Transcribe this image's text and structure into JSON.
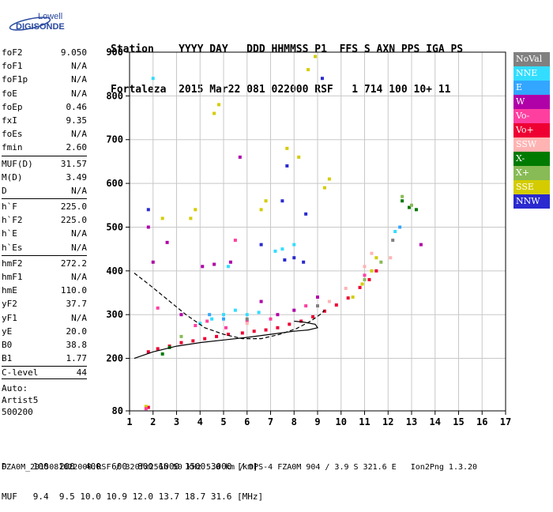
{
  "logo": {
    "top": "Lowell",
    "bottom": "DIGISONDE"
  },
  "header": {
    "row1": "Station    YYYY DAY   DDD HHMMSS P1  FFS S AXN PPS IGA PS",
    "row2": "Fortaleza  2015 Mar22 081 022000 RSF   1 714 100 10+ 11"
  },
  "params": [
    [
      {
        "k": "foF2",
        "v": "9.050"
      },
      {
        "k": "foF1",
        "v": "N/A"
      },
      {
        "k": "foF1p",
        "v": "N/A"
      },
      {
        "k": "foE",
        "v": "N/A"
      },
      {
        "k": "foEp",
        "v": "0.46"
      },
      {
        "k": "fxI",
        "v": "9.35"
      },
      {
        "k": "foEs",
        "v": "N/A"
      },
      {
        "k": "fmin",
        "v": "2.60"
      }
    ],
    [
      {
        "k": "MUF(D)",
        "v": "31.57"
      },
      {
        "k": "M(D)",
        "v": "3.49"
      },
      {
        "k": "D",
        "v": "N/A"
      }
    ],
    [
      {
        "k": "h`F",
        "v": "225.0"
      },
      {
        "k": "h`F2",
        "v": "225.0"
      },
      {
        "k": "h`E",
        "v": "N/A"
      },
      {
        "k": "h`Es",
        "v": "N/A"
      }
    ],
    [
      {
        "k": "hmF2",
        "v": "272.2"
      },
      {
        "k": "hmF1",
        "v": "N/A"
      },
      {
        "k": "hmE",
        "v": "110.0"
      },
      {
        "k": "yF2",
        "v": "37.7"
      },
      {
        "k": "yF1",
        "v": "N/A"
      },
      {
        "k": "yE",
        "v": "20.0"
      },
      {
        "k": "B0",
        "v": "38.8"
      },
      {
        "k": "B1",
        "v": "1.77"
      }
    ]
  ],
  "clevel": {
    "k": "C-level",
    "v": "44"
  },
  "auto": [
    "Auto:",
    "Artist5",
    "500200"
  ],
  "legend": [
    {
      "label": "NoVal",
      "color": "#808080",
      "text": "#ffffff"
    },
    {
      "label": "NNE",
      "color": "#33ddff",
      "text": "#ffffff"
    },
    {
      "label": "E",
      "color": "#33a6ff",
      "text": "#ffffff"
    },
    {
      "label": "W",
      "color": "#b000a8",
      "text": "#ffffff"
    },
    {
      "label": "Vo-",
      "color": "#ff3fa0",
      "text": "#ffffff"
    },
    {
      "label": "Vo+",
      "color": "#ee0033",
      "text": "#ffffff"
    },
    {
      "label": "SSW",
      "color": "#ffb3b3",
      "text": "#ffffff"
    },
    {
      "label": "X-",
      "color": "#007a00",
      "text": "#ffffff"
    },
    {
      "label": "X+",
      "color": "#88bb55",
      "text": "#ffffff"
    },
    {
      "label": "SSE",
      "color": "#d4cc00",
      "text": "#ffffff"
    },
    {
      "label": "NNW",
      "color": "#2a2ad0",
      "text": "#ffffff"
    }
  ],
  "footer": {
    "row1": "D     100  200  400  600  800 1000 1500 3000 [km]",
    "row2": "MUF   9.4  9.5 10.0 10.9 12.0 13.7 18.7 31.6 [MHz]",
    "row3": "FZA0M_2015081022000.RSF / 320fx256h 50 kHz 5.0 km / DPS-4 FZA0M 904 / 3.9 S 321.6 E   Ion2Png 1.3.20"
  },
  "chart_data": {
    "type": "scatter",
    "title": "",
    "xlabel": "",
    "ylabel": "",
    "xlim": [
      1,
      17
    ],
    "ylim": [
      80,
      900
    ],
    "x_ticks": [
      1,
      2,
      3,
      4,
      5,
      6,
      7,
      8,
      9,
      10,
      11,
      12,
      13,
      14,
      15,
      16,
      17
    ],
    "y_ticks": [
      80,
      200,
      300,
      400,
      500,
      600,
      700,
      800,
      900
    ],
    "grid": true,
    "series": [
      {
        "name": "Vo+",
        "color": "#ee0033",
        "points": [
          [
            1.8,
            215
          ],
          [
            2.2,
            222
          ],
          [
            2.7,
            228
          ],
          [
            3.2,
            236
          ],
          [
            3.7,
            240
          ],
          [
            4.2,
            245
          ],
          [
            4.7,
            250
          ],
          [
            5.2,
            255
          ],
          [
            5.8,
            258
          ],
          [
            6.3,
            262
          ],
          [
            6.8,
            265
          ],
          [
            7.3,
            270
          ],
          [
            7.8,
            278
          ],
          [
            8.3,
            285
          ],
          [
            8.8,
            295
          ],
          [
            9.3,
            308
          ],
          [
            9.8,
            322
          ],
          [
            10.3,
            338
          ],
          [
            10.8,
            362
          ],
          [
            11.2,
            380
          ],
          [
            11.5,
            400
          ],
          [
            1.8,
            88
          ]
        ]
      },
      {
        "name": "SSE",
        "color": "#d4cc00",
        "points": [
          [
            10.5,
            340
          ],
          [
            10.9,
            370
          ],
          [
            11.3,
            400
          ],
          [
            11.5,
            430
          ],
          [
            4.6,
            760
          ],
          [
            4.8,
            780
          ],
          [
            8.6,
            860
          ],
          [
            8.9,
            890
          ],
          [
            3.6,
            520
          ],
          [
            3.8,
            540
          ],
          [
            6.6,
            540
          ],
          [
            6.8,
            560
          ],
          [
            7.7,
            680
          ],
          [
            8.2,
            660
          ],
          [
            9.3,
            590
          ],
          [
            9.5,
            610
          ],
          [
            2.4,
            520
          ],
          [
            1.7,
            90
          ]
        ]
      },
      {
        "name": "NNE",
        "color": "#33ddff",
        "points": [
          [
            4.0,
            280
          ],
          [
            4.5,
            290
          ],
          [
            5.0,
            300
          ],
          [
            5.5,
            310
          ],
          [
            6.0,
            300
          ],
          [
            6.5,
            305
          ],
          [
            7.5,
            450
          ],
          [
            8.0,
            460
          ],
          [
            2.0,
            840
          ],
          [
            5.2,
            410
          ],
          [
            7.2,
            445
          ],
          [
            12.3,
            490
          ]
        ]
      },
      {
        "name": "NNW",
        "color": "#2a2ad0",
        "points": [
          [
            7.6,
            425
          ],
          [
            8.0,
            430
          ],
          [
            8.4,
            420
          ],
          [
            7.7,
            640
          ],
          [
            7.5,
            560
          ],
          [
            8.5,
            530
          ],
          [
            6.6,
            460
          ],
          [
            9.2,
            840
          ],
          [
            1.8,
            540
          ]
        ]
      },
      {
        "name": "W",
        "color": "#b000a8",
        "points": [
          [
            3.2,
            300
          ],
          [
            4.1,
            410
          ],
          [
            4.6,
            415
          ],
          [
            5.3,
            420
          ],
          [
            6.6,
            330
          ],
          [
            7.3,
            300
          ],
          [
            8.0,
            310
          ],
          [
            9.0,
            340
          ],
          [
            1.8,
            500
          ],
          [
            2.0,
            420
          ],
          [
            2.6,
            465
          ],
          [
            5.7,
            660
          ],
          [
            13.4,
            460
          ]
        ]
      },
      {
        "name": "Vo-",
        "color": "#ff3fa0",
        "points": [
          [
            3.8,
            275
          ],
          [
            4.3,
            285
          ],
          [
            5.1,
            270
          ],
          [
            6.0,
            285
          ],
          [
            7.0,
            290
          ],
          [
            8.5,
            320
          ],
          [
            2.2,
            315
          ],
          [
            1.7,
            85
          ],
          [
            5.5,
            470
          ],
          [
            11.0,
            390
          ]
        ]
      },
      {
        "name": "SSW",
        "color": "#ffb3b3",
        "points": [
          [
            11.0,
            410
          ],
          [
            11.3,
            440
          ],
          [
            6.0,
            280
          ],
          [
            9.5,
            330
          ],
          [
            10.2,
            360
          ],
          [
            12.1,
            430
          ]
        ]
      },
      {
        "name": "X-",
        "color": "#007a00",
        "points": [
          [
            12.6,
            560
          ],
          [
            12.9,
            545
          ],
          [
            13.2,
            540
          ],
          [
            2.4,
            210
          ],
          [
            2.7,
            225
          ]
        ]
      },
      {
        "name": "X+",
        "color": "#88bb55",
        "points": [
          [
            12.6,
            570
          ],
          [
            13.0,
            550
          ],
          [
            3.2,
            250
          ],
          [
            11.0,
            380
          ],
          [
            11.7,
            420
          ]
        ]
      },
      {
        "name": "E",
        "color": "#33a6ff",
        "points": [
          [
            4.4,
            300
          ],
          [
            5.0,
            290
          ],
          [
            12.5,
            500
          ]
        ]
      },
      {
        "name": "NoVal",
        "color": "#808080",
        "points": [
          [
            6.0,
            290
          ],
          [
            9.0,
            320
          ],
          [
            12.2,
            470
          ]
        ]
      }
    ],
    "curves": [
      {
        "name": "profile-solid",
        "style": "solid",
        "points": [
          [
            1.2,
            200
          ],
          [
            2.0,
            215
          ],
          [
            3.0,
            228
          ],
          [
            4.0,
            236
          ],
          [
            5.0,
            242
          ],
          [
            6.0,
            248
          ],
          [
            7.0,
            255
          ],
          [
            8.0,
            262
          ],
          [
            8.6,
            265
          ],
          [
            9.0,
            270
          ],
          [
            8.9,
            278
          ],
          [
            8.4,
            283
          ],
          [
            8.0,
            285
          ]
        ]
      },
      {
        "name": "profile-dashed",
        "style": "dashed",
        "points": [
          [
            1.2,
            395
          ],
          [
            1.8,
            370
          ],
          [
            2.6,
            335
          ],
          [
            3.4,
            300
          ],
          [
            4.2,
            270
          ],
          [
            5.0,
            255
          ],
          [
            5.8,
            245
          ],
          [
            6.6,
            245
          ],
          [
            7.4,
            255
          ],
          [
            8.1,
            268
          ],
          [
            8.7,
            285
          ],
          [
            9.1,
            300
          ],
          [
            9.3,
            310
          ]
        ]
      }
    ]
  }
}
